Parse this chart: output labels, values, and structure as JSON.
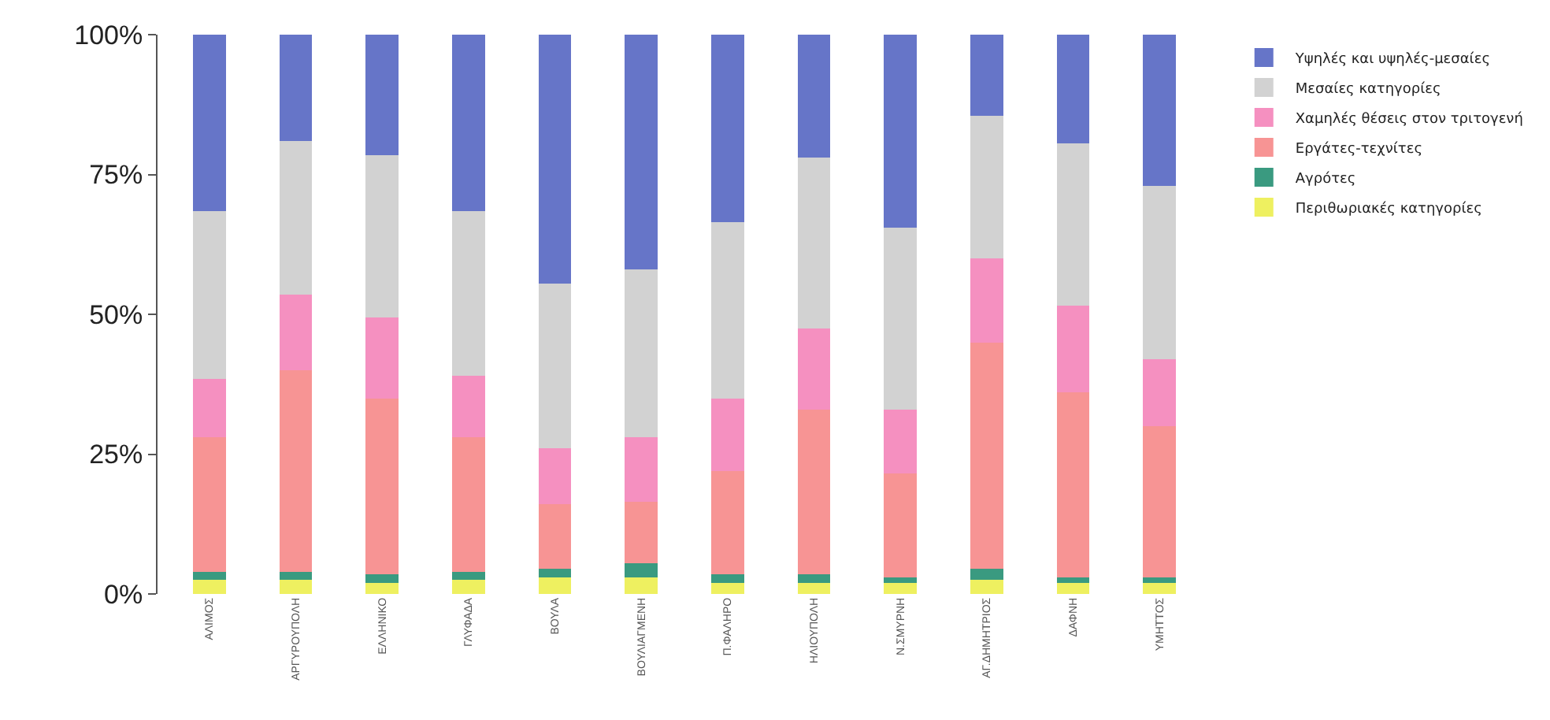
{
  "chart_data": {
    "type": "bar",
    "stacked": true,
    "categories": [
      "ΑΛΙΜΟΣ",
      "ΑΡΓΥΡΟΥΠΟΛΗ",
      "ΕΛΛΗΝΙΚΟ",
      "ΓΛΥΦΑΔΑ",
      "ΒΟΥΛΑ",
      "ΒΟΥΛΙΑΓΜΕΝΗ",
      "Π.ΦΑΛΗΡΟ",
      "ΗΛΙΟΥΠΟΛΗ",
      "Ν.ΣΜΥΡΝΗ",
      "ΑΓ.ΔΗΜΗΤΡΙΟΣ",
      "ΔΑΦΝΗ",
      "ΥΜΗΤΤΟΣ"
    ],
    "series": [
      {
        "name": "Περιθωριακές κατηγορίες",
        "color": "#eef060",
        "values": [
          2.5,
          2.5,
          2,
          2.5,
          3,
          3,
          2,
          2,
          2,
          2.5,
          2,
          2
        ]
      },
      {
        "name": "Αγρότες",
        "color": "#3a9a80",
        "values": [
          1.5,
          1.5,
          1.5,
          1.5,
          1.5,
          2.5,
          1.5,
          1.5,
          1,
          2,
          1,
          1
        ]
      },
      {
        "name": "Εργάτες-τεχνίτες",
        "color": "#f79494",
        "values": [
          24,
          36,
          31.5,
          24,
          11.5,
          11,
          18.5,
          29.5,
          18.5,
          40.5,
          33,
          27
        ]
      },
      {
        "name": "Χαμηλές θέσεις στον τριτογενή",
        "color": "#f590c0",
        "values": [
          10.5,
          13.5,
          14.5,
          11,
          10,
          11.5,
          13,
          14.5,
          11.5,
          15,
          15.5,
          12
        ]
      },
      {
        "name": "Μεσαίες κατηγορίες",
        "color": "#d2d2d2",
        "values": [
          30,
          27.5,
          29,
          29.5,
          29.5,
          30,
          31.5,
          30.5,
          32.5,
          25.5,
          29,
          31
        ]
      },
      {
        "name": "Υψηλές και υψηλές-μεσαίες",
        "color": "#6675c8",
        "values": [
          31.5,
          19,
          21.5,
          31.5,
          44.5,
          42,
          33.5,
          22,
          34.5,
          14.5,
          19.5,
          27
        ]
      }
    ],
    "ylim": [
      0,
      100
    ],
    "yticks": [
      {
        "value": 0,
        "label": "0%"
      },
      {
        "value": 25,
        "label": "25%"
      },
      {
        "value": 50,
        "label": "50%"
      },
      {
        "value": 75,
        "label": "75%"
      },
      {
        "value": 100,
        "label": "100%"
      }
    ],
    "legend": "right"
  }
}
